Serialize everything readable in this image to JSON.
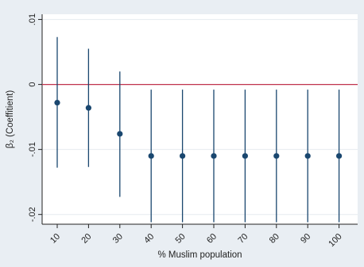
{
  "chart_data": {
    "type": "scatter",
    "title": "",
    "xlabel": "% Muslim population",
    "ylabel": "β₂ (Coeffitient)",
    "x": [
      10,
      20,
      30,
      40,
      50,
      60,
      70,
      80,
      90,
      100
    ],
    "x_tick_labels": [
      "10",
      "20",
      "30",
      "40",
      "50",
      "60",
      "70",
      "80",
      "90",
      "100"
    ],
    "y_ticks": [
      -0.02,
      -0.01,
      0,
      0.01
    ],
    "y_tick_labels": [
      "-.02",
      "-.01",
      "0",
      ".01"
    ],
    "ylim": [
      -0.0215,
      0.0108
    ],
    "reference_line_y": 0,
    "series": [
      {
        "estimate": [
          -0.0028,
          -0.0036,
          -0.0076,
          -0.011,
          -0.011,
          -0.011,
          -0.011,
          -0.011,
          -0.011,
          -0.011
        ],
        "ci_lower": [
          -0.0128,
          -0.0127,
          -0.0173,
          -0.0212,
          -0.0212,
          -0.0212,
          -0.0212,
          -0.0212,
          -0.0212,
          -0.0212
        ],
        "ci_upper": [
          0.0073,
          0.0055,
          0.002,
          -0.0008,
          -0.0008,
          -0.0008,
          -0.0008,
          -0.0008,
          -0.0008,
          -0.0008
        ]
      }
    ],
    "grid": true,
    "colors": {
      "outer_background": "#e9eef3",
      "plot_background": "#ffffff",
      "marker": "#1a476f",
      "reference_line": "#c0334d",
      "gridline": "#e6ebef",
      "axis": "#222222"
    }
  }
}
